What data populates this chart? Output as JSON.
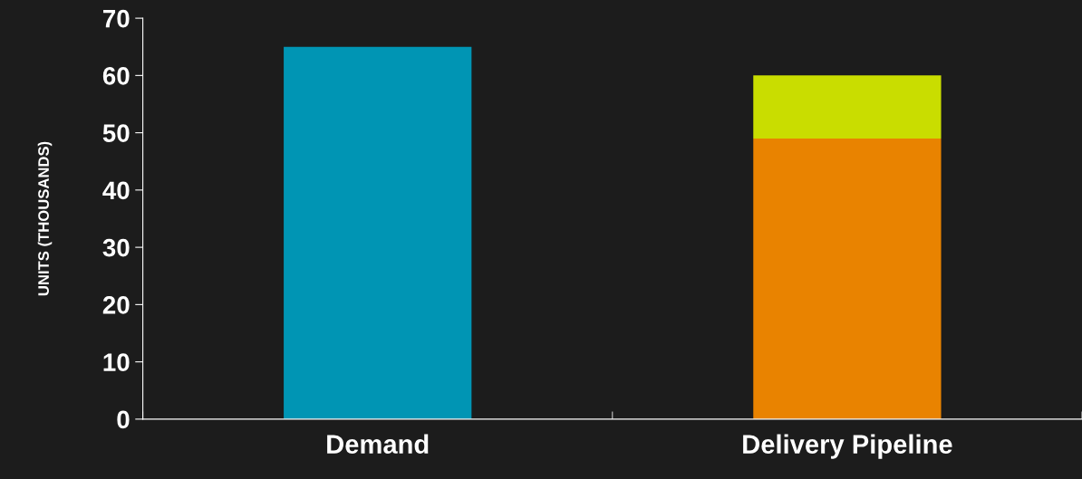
{
  "chart_data": {
    "type": "bar",
    "stacked": true,
    "ylabel": "UNITS (THOUSANDS)",
    "categories": [
      "Demand",
      "Delivery Pipeline"
    ],
    "series": [
      {
        "colors": [
          "#0095b4",
          "#e98300"
        ],
        "values": [
          65,
          49
        ]
      },
      {
        "color": "#c9dd00",
        "values": [
          null,
          11
        ]
      }
    ],
    "ylim": [
      0,
      70
    ],
    "yticks": [
      0,
      10,
      20,
      30,
      40,
      50,
      60,
      70
    ],
    "grid": false,
    "legend": false
  }
}
